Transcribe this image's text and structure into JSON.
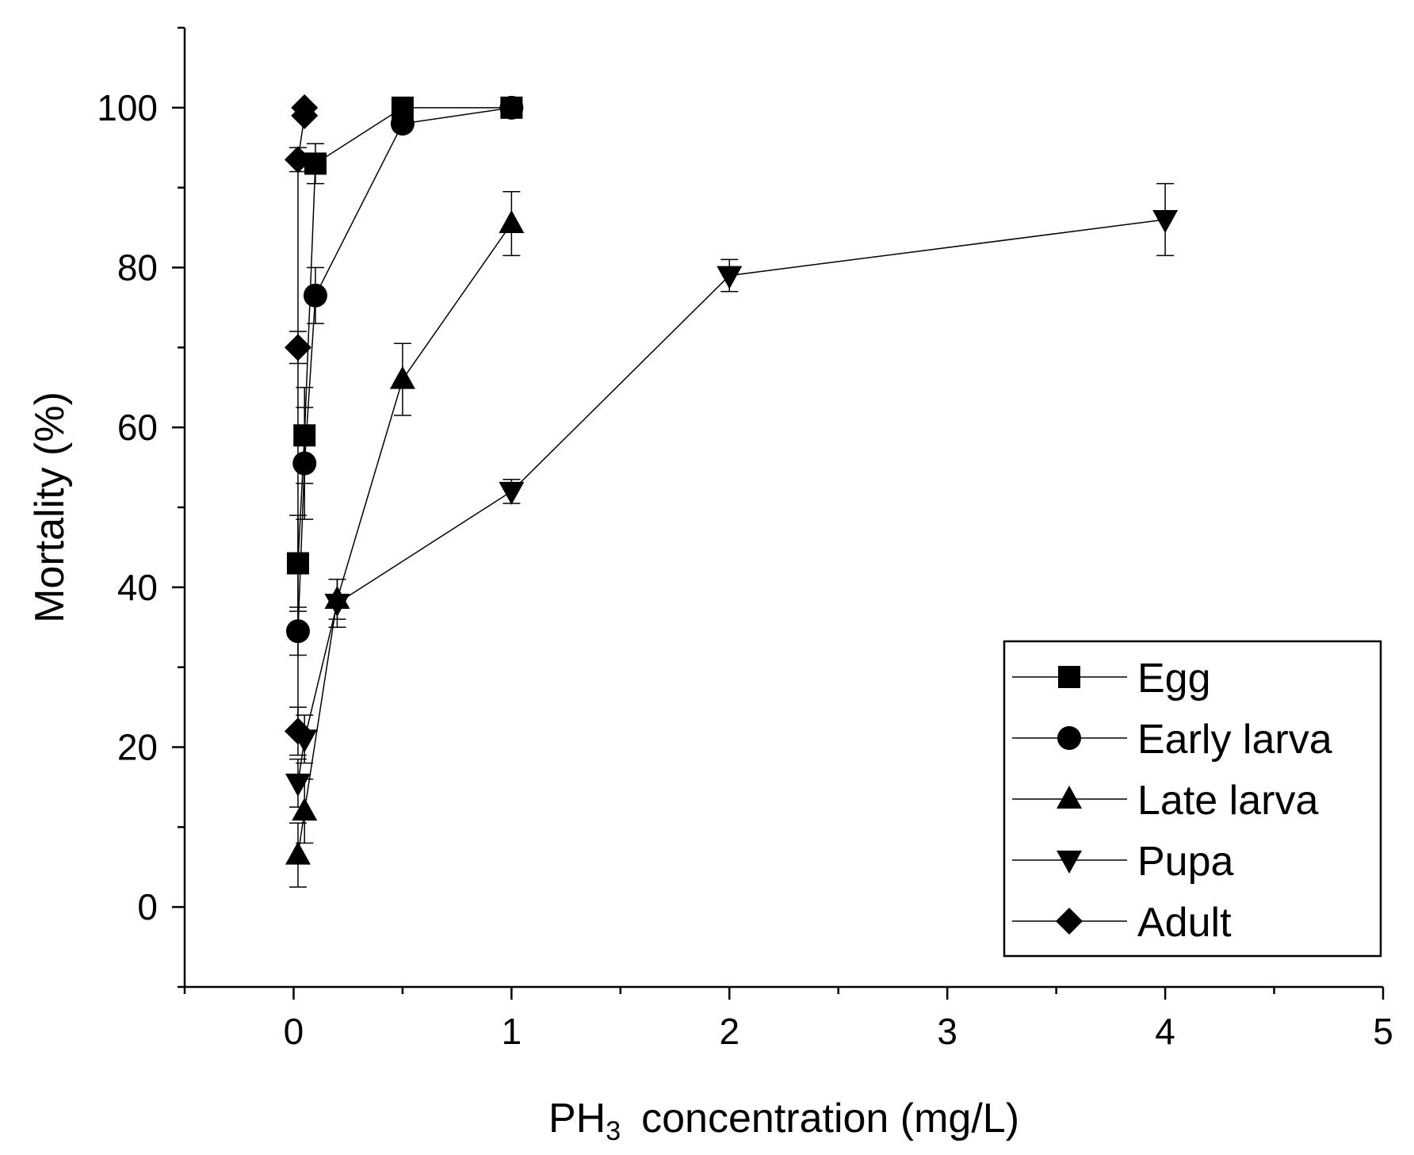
{
  "chart_data": {
    "type": "scatter",
    "title": "",
    "xlabel": {
      "main": "PH",
      "sub": "3",
      "rest": "concentration (mg/L)"
    },
    "ylabel": "Mortality (%)",
    "xlim": [
      -0.5,
      5
    ],
    "ylim": [
      -10,
      110
    ],
    "x_ticks": [
      0,
      1,
      2,
      3,
      4,
      5
    ],
    "x_tick_labels": [
      "0",
      "1",
      "2",
      "3",
      "4",
      "5"
    ],
    "y_ticks": [
      0,
      20,
      40,
      60,
      80,
      100
    ],
    "y_tick_labels": [
      "0",
      "20",
      "40",
      "60",
      "80",
      "100"
    ],
    "grid": false,
    "legend_position": "bottom-right",
    "series": [
      {
        "name": "Egg",
        "marker": "square",
        "x": [
          0.02,
          0.05,
          0.1,
          0.5,
          1.0
        ],
        "y": [
          43,
          59,
          93,
          100,
          100
        ],
        "err": [
          6,
          6,
          2.5,
          0.5,
          0.5
        ]
      },
      {
        "name": "Early larva",
        "marker": "circle",
        "x": [
          0.02,
          0.05,
          0.1,
          0.5,
          1.0
        ],
        "y": [
          34.5,
          55.5,
          76.5,
          98,
          100
        ],
        "err": [
          3,
          7,
          3.5,
          1,
          0.5
        ]
      },
      {
        "name": "Late larva",
        "marker": "triangle-up",
        "x": [
          0.02,
          0.05,
          0.2,
          0.5,
          1.0
        ],
        "y": [
          6.5,
          12,
          38.5,
          66,
          85.5
        ],
        "err": [
          4,
          4,
          2.5,
          4.5,
          4
        ]
      },
      {
        "name": "Pupa",
        "marker": "triangle-down",
        "x": [
          0.02,
          0.05,
          0.2,
          1.0,
          2.0,
          4.0
        ],
        "y": [
          15.5,
          21,
          38,
          52,
          79,
          86
        ],
        "err": [
          3,
          3,
          3,
          1.5,
          2,
          4.5
        ]
      },
      {
        "name": "Adult",
        "marker": "diamond",
        "x": [
          0.02,
          0.02,
          0.02,
          0.05,
          0.05
        ],
        "y": [
          22,
          70,
          93.5,
          99,
          100
        ],
        "err": [
          3,
          2,
          1.5,
          0.5,
          0.5
        ]
      }
    ]
  }
}
